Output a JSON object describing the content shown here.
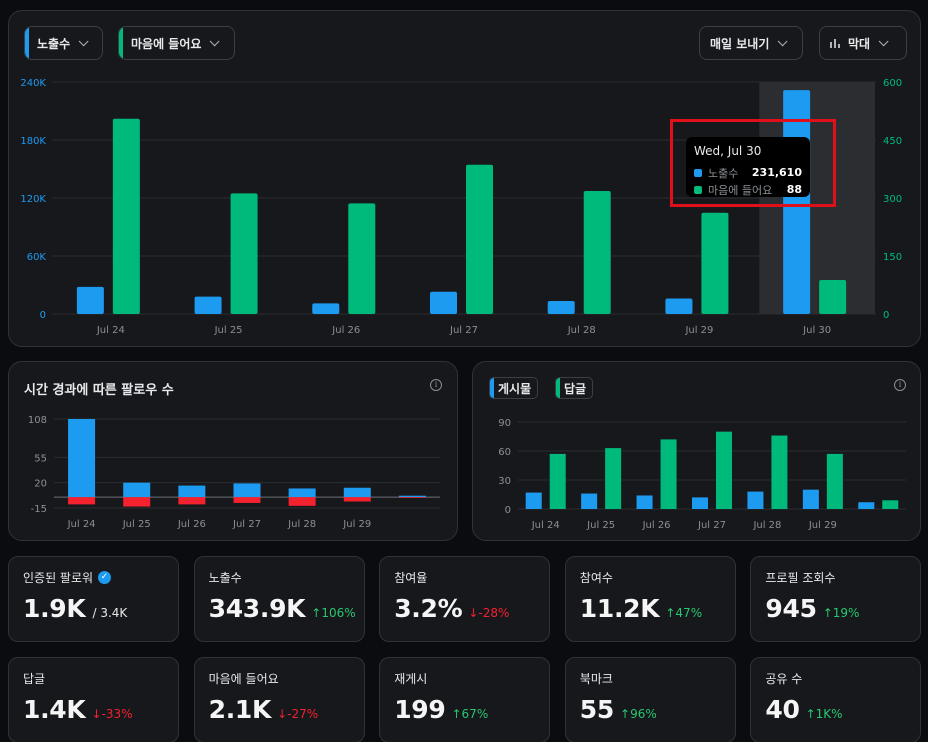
{
  "main_chart": {
    "metric1_label": "노출수",
    "metric2_label": "마음에 들어요",
    "export_label": "매일 보내기",
    "chart_type_label": "막대",
    "chart_type_icon": "bar-chart-icon",
    "colors": {
      "metric1": "#1d9bf0",
      "metric2": "#00ba7c"
    },
    "tooltip": {
      "title": "Wed, Jul 30",
      "row1_label": "노출수",
      "row1_value": "231,610",
      "row2_label": "마음에 들어요",
      "row2_value": "88"
    }
  },
  "followers_panel": {
    "title": "시간 경과에 따른 팔로우 수",
    "info_icon": "info-icon"
  },
  "posts_panel": {
    "chip1": "게시물",
    "chip2": "답글",
    "info_icon": "info-icon"
  },
  "chart_data": [
    {
      "type": "bar",
      "categories": [
        "Jul 24",
        "Jul 25",
        "Jul 26",
        "Jul 27",
        "Jul 28",
        "Jul 29",
        "Jul 30"
      ],
      "series": [
        {
          "name": "노출수",
          "values": [
            28000,
            18000,
            11000,
            23000,
            13500,
            16000,
            231610
          ],
          "axis": "left"
        },
        {
          "name": "마음에 들어요",
          "values": [
            505,
            312,
            286,
            386,
            318,
            262,
            88
          ],
          "axis": "right"
        }
      ],
      "left_ticks": [
        "240K",
        "180K",
        "120K",
        "60K",
        "0"
      ],
      "right_ticks": [
        "600",
        "450",
        "300",
        "150",
        "0"
      ],
      "ylim_left": [
        0,
        240000
      ],
      "ylim_right": [
        0,
        600
      ],
      "grid": true,
      "highlight_category": "Jul 30"
    },
    {
      "type": "bar",
      "categories": [
        "Jul 24",
        "Jul 25",
        "Jul 26",
        "Jul 27",
        "Jul 28",
        "Jul 29",
        ""
      ],
      "series": [
        {
          "values": [
            108,
            20,
            16,
            19,
            12,
            13,
            2
          ]
        },
        {
          "values": [
            -10,
            -13,
            -10,
            -8,
            -12,
            -6,
            -1
          ]
        }
      ],
      "y_ticks": [
        "108",
        "55",
        "20",
        "-15"
      ],
      "ylim": [
        -15,
        108
      ],
      "grid": true
    },
    {
      "type": "bar",
      "categories": [
        "Jul 24",
        "Jul 25",
        "Jul 26",
        "Jul 27",
        "Jul 28",
        "Jul 29",
        ""
      ],
      "series": [
        {
          "name": "게시물",
          "values": [
            17,
            16,
            14,
            12,
            18,
            20,
            7
          ]
        },
        {
          "name": "답글",
          "values": [
            57,
            63,
            72,
            80,
            76,
            57,
            9
          ]
        }
      ],
      "y_ticks": [
        "90",
        "60",
        "30",
        "0"
      ],
      "ylim": [
        0,
        90
      ],
      "grid": true
    }
  ],
  "stats": [
    {
      "label": "인증된 팔로워",
      "value": "1.9K",
      "sub": "/ 3.4K",
      "change": "",
      "dir": "none",
      "verified": true
    },
    {
      "label": "노출수",
      "value": "343.9K",
      "sub": "",
      "change": "106%",
      "dir": "up"
    },
    {
      "label": "참여율",
      "value": "3.2%",
      "sub": "",
      "change": "-28%",
      "dir": "down"
    },
    {
      "label": "참여수",
      "value": "11.2K",
      "sub": "",
      "change": "47%",
      "dir": "up"
    },
    {
      "label": "프로필 조회수",
      "value": "945",
      "sub": "",
      "change": "19%",
      "dir": "up"
    },
    {
      "label": "답글",
      "value": "1.4K",
      "sub": "",
      "change": "-33%",
      "dir": "down"
    },
    {
      "label": "마음에 들어요",
      "value": "2.1K",
      "sub": "",
      "change": "-27%",
      "dir": "down"
    },
    {
      "label": "재게시",
      "value": "199",
      "sub": "",
      "change": "67%",
      "dir": "up"
    },
    {
      "label": "북마크",
      "value": "55",
      "sub": "",
      "change": "96%",
      "dir": "up"
    },
    {
      "label": "공유 수",
      "value": "40",
      "sub": "",
      "change": "1K%",
      "dir": "up"
    }
  ]
}
